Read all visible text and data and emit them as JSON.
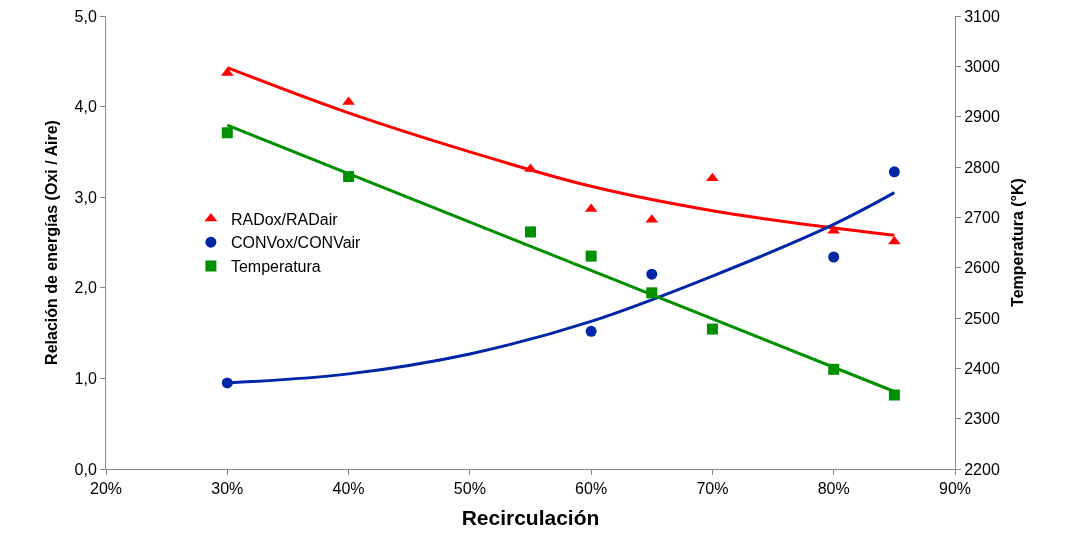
{
  "chart_data": {
    "type": "scatter",
    "xlabel": "Recirculación",
    "ylabel": "Relación de energías (Oxi / Aire)",
    "y2label": "Temperatura (°K)",
    "xlim": [
      20,
      90
    ],
    "xticks": [
      {
        "value": 20,
        "label": "20%"
      },
      {
        "value": 30,
        "label": "30%"
      },
      {
        "value": 40,
        "label": "40%"
      },
      {
        "value": 50,
        "label": "50%"
      },
      {
        "value": 60,
        "label": "60%"
      },
      {
        "value": 70,
        "label": "70%"
      },
      {
        "value": 80,
        "label": "80%"
      },
      {
        "value": 90,
        "label": "90%"
      }
    ],
    "ylim": [
      0,
      5
    ],
    "yticks": [
      {
        "value": 0,
        "label": "0,0"
      },
      {
        "value": 1,
        "label": "1,0"
      },
      {
        "value": 2,
        "label": "2,0"
      },
      {
        "value": 3,
        "label": "3,0"
      },
      {
        "value": 4,
        "label": "4,0"
      },
      {
        "value": 5,
        "label": "5,0"
      }
    ],
    "y2lim": [
      2200,
      3100
    ],
    "y2ticks": [
      2200,
      2300,
      2400,
      2500,
      2600,
      2700,
      2800,
      2900,
      3000,
      3100
    ],
    "grid": false,
    "legend": "left",
    "series": [
      {
        "type": "line",
        "color": "#ff0000",
        "marker": "none",
        "x": [
          30,
          40,
          50,
          60,
          70,
          80,
          85
        ],
        "values": [
          4.43,
          3.93,
          3.5,
          3.12,
          2.85,
          2.66,
          2.58
        ]
      },
      {
        "type": "line",
        "color": "#0026a8",
        "marker": "none",
        "x": [
          30,
          40,
          50,
          60,
          70,
          80,
          85
        ],
        "values": [
          0.95,
          1.05,
          1.27,
          1.63,
          2.13,
          2.7,
          3.05
        ]
      },
      {
        "type": "line",
        "color": "#009000",
        "marker": "none",
        "axis": "y2",
        "x": [
          30,
          85
        ],
        "values": [
          2883,
          2354
        ]
      },
      {
        "name": "RADox/RADair",
        "color": "#ff0000",
        "marker": "triangle",
        "x": [
          30,
          40,
          55,
          60,
          65,
          70,
          80,
          85
        ],
        "values": [
          4.37,
          4.05,
          3.31,
          2.87,
          2.75,
          3.21,
          2.63,
          2.51
        ]
      },
      {
        "name": "CONVox/CONVair",
        "color": "#0026a8",
        "marker": "circle",
        "x": [
          30,
          60,
          65,
          80,
          85
        ],
        "values": [
          0.95,
          1.52,
          2.15,
          2.34,
          3.28
        ]
      },
      {
        "name": "Temperatura",
        "color": "#009000",
        "marker": "square",
        "axis": "y2",
        "x": [
          30,
          40,
          55,
          60,
          65,
          70,
          80,
          85
        ],
        "values": [
          2868,
          2781,
          2671,
          2623,
          2550,
          2478,
          2398,
          2347
        ]
      }
    ]
  }
}
